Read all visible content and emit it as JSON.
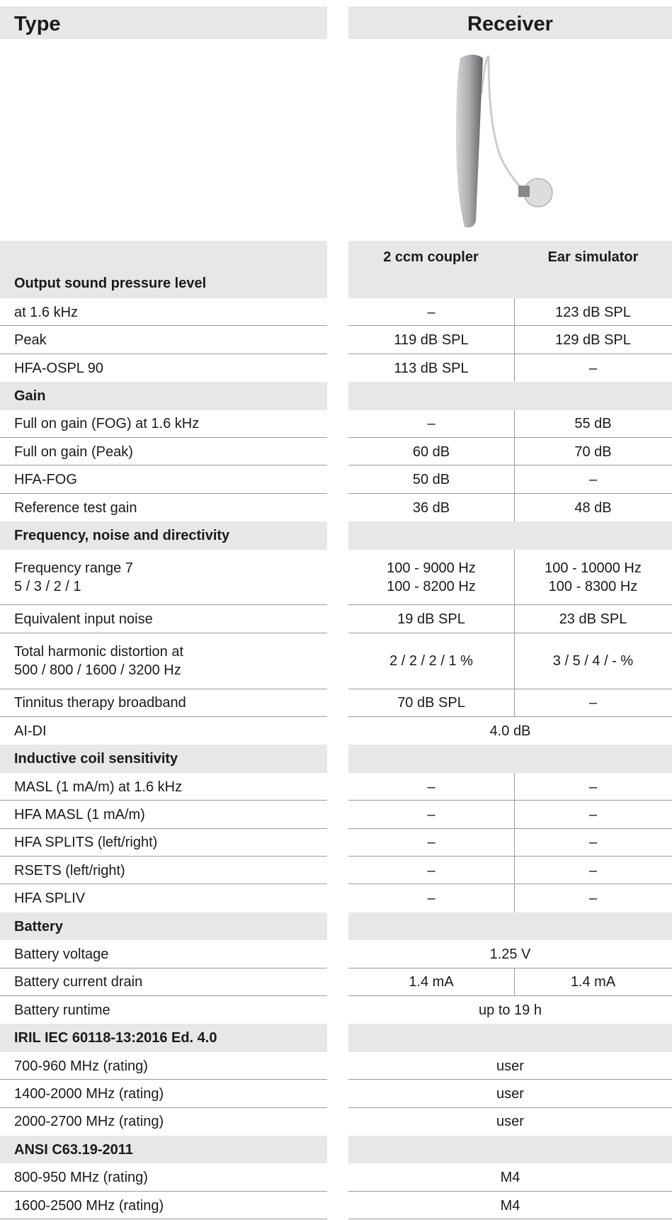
{
  "header": {
    "type": "Type",
    "receiver": "Receiver"
  },
  "columns": [
    "2 ccm coupler",
    "Ear simulator"
  ],
  "sections": [
    {
      "title": "Output sound pressure level",
      "rows": [
        {
          "label": [
            "at 1.6 kHz"
          ],
          "values": [
            [
              "–"
            ],
            [
              "123 dB SPL"
            ]
          ]
        },
        {
          "label": [
            "Peak"
          ],
          "values": [
            [
              "119 dB SPL"
            ],
            [
              "129 dB SPL"
            ]
          ]
        },
        {
          "label": [
            "HFA-OSPL 90"
          ],
          "values": [
            [
              "113 dB SPL"
            ],
            [
              "–"
            ]
          ]
        }
      ]
    },
    {
      "title": "Gain",
      "rows": [
        {
          "label": [
            "Full on gain (FOG) at 1.6 kHz"
          ],
          "values": [
            [
              "–"
            ],
            [
              "55 dB"
            ]
          ]
        },
        {
          "label": [
            "Full on gain (Peak)"
          ],
          "values": [
            [
              "60 dB"
            ],
            [
              "70 dB"
            ]
          ]
        },
        {
          "label": [
            "HFA-FOG"
          ],
          "values": [
            [
              "50 dB"
            ],
            [
              "–"
            ]
          ]
        },
        {
          "label": [
            "Reference test gain"
          ],
          "values": [
            [
              "36 dB"
            ],
            [
              "48 dB"
            ]
          ]
        }
      ]
    },
    {
      "title": "Frequency, noise and directivity",
      "rows": [
        {
          "label": [
            "Frequency range 7",
            "5 / 3 / 2 / 1"
          ],
          "values": [
            [
              "100 - 9000 Hz",
              "100 - 8200 Hz"
            ],
            [
              "100 - 10000 Hz",
              "100 - 8300 Hz"
            ]
          ]
        },
        {
          "label": [
            "Equivalent input noise"
          ],
          "values": [
            [
              "19 dB SPL"
            ],
            [
              "23 dB SPL"
            ]
          ]
        },
        {
          "label": [
            "Total harmonic distortion at",
            "500 / 800 / 1600 / 3200 Hz"
          ],
          "values": [
            [
              "2 / 2 / 2 / 1 %"
            ],
            [
              "3 / 5 / 4 / - %"
            ]
          ]
        },
        {
          "label": [
            "Tinnitus therapy broadband"
          ],
          "values": [
            [
              "70 dB SPL"
            ],
            [
              "–"
            ]
          ]
        },
        {
          "label": [
            "AI-DI"
          ],
          "values": [
            [
              "4.0 dB"
            ]
          ]
        }
      ]
    },
    {
      "title": "Inductive coil sensitivity",
      "rows": [
        {
          "label": [
            "MASL (1 mA/m) at 1.6 kHz"
          ],
          "values": [
            [
              "–"
            ],
            [
              "–"
            ]
          ]
        },
        {
          "label": [
            "HFA MASL (1 mA/m)"
          ],
          "values": [
            [
              "–"
            ],
            [
              "–"
            ]
          ]
        },
        {
          "label": [
            "HFA SPLITS (left/right)"
          ],
          "values": [
            [
              "–"
            ],
            [
              "–"
            ]
          ]
        },
        {
          "label": [
            "RSETS (left/right)"
          ],
          "values": [
            [
              "–"
            ],
            [
              "–"
            ]
          ]
        },
        {
          "label": [
            "HFA SPLIV"
          ],
          "values": [
            [
              "–"
            ],
            [
              "–"
            ]
          ]
        }
      ]
    },
    {
      "title": "Battery",
      "rows": [
        {
          "label": [
            "Battery voltage"
          ],
          "values": [
            [
              "1.25 V"
            ]
          ]
        },
        {
          "label": [
            "Battery current drain"
          ],
          "values": [
            [
              "1.4 mA"
            ],
            [
              "1.4 mA"
            ]
          ]
        },
        {
          "label": [
            "Battery runtime"
          ],
          "values": [
            [
              "up to 19 h"
            ]
          ]
        }
      ]
    },
    {
      "title": "IRIL IEC 60118-13:2016 Ed. 4.0",
      "rows": [
        {
          "label": [
            "700-960 MHz (rating)"
          ],
          "values": [
            [
              "user"
            ]
          ]
        },
        {
          "label": [
            "1400-2000 MHz (rating)"
          ],
          "values": [
            [
              "user"
            ]
          ]
        },
        {
          "label": [
            "2000-2700 MHz (rating)"
          ],
          "values": [
            [
              "user"
            ]
          ]
        }
      ]
    },
    {
      "title": "ANSI C63.19-2011",
      "rows": [
        {
          "label": [
            "800-950 MHz (rating)"
          ],
          "values": [
            [
              "M4"
            ]
          ]
        },
        {
          "label": [
            "1600-2500 MHz (rating)"
          ],
          "values": [
            [
              "M4"
            ]
          ]
        }
      ]
    }
  ]
}
